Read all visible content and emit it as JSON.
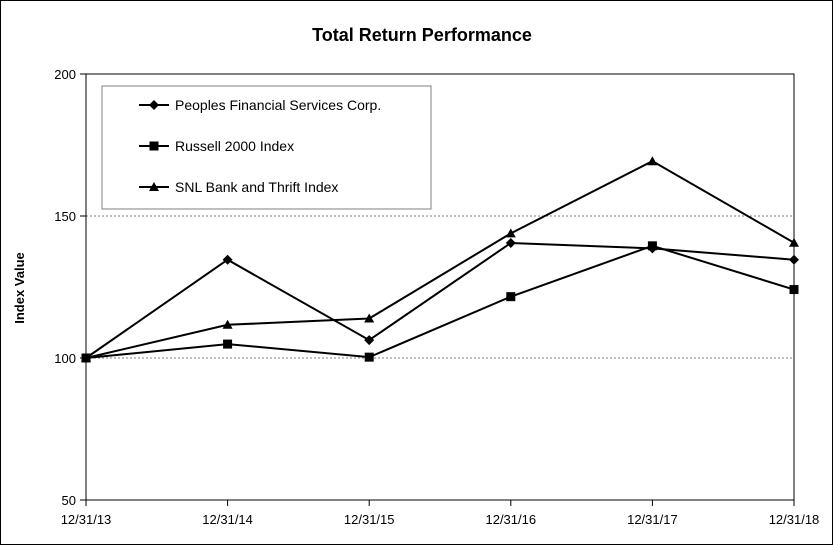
{
  "chart_data": {
    "type": "line",
    "title": "Total Return Performance",
    "xlabel": "",
    "ylabel": "Index Value",
    "categories": [
      "12/31/13",
      "12/31/14",
      "12/31/15",
      "12/31/16",
      "12/31/17",
      "12/31/18"
    ],
    "ylim": [
      50,
      200
    ],
    "yticks": [
      50,
      100,
      150,
      200
    ],
    "grid": "horizontal dashed",
    "legend": "top-left",
    "series": [
      {
        "name": "Peoples Financial Services Corp.",
        "marker": "diamond",
        "values": [
          100.0,
          134.6,
          106.3,
          140.5,
          138.6,
          134.6
        ]
      },
      {
        "name": "Russell 2000 Index",
        "marker": "square",
        "values": [
          100.0,
          104.9,
          100.3,
          121.6,
          139.5,
          124.1
        ]
      },
      {
        "name": "SNL Bank and Thrift Index",
        "marker": "triangle",
        "values": [
          100.0,
          111.7,
          113.9,
          143.9,
          169.3,
          140.6
        ]
      }
    ],
    "colors": {
      "line": "#000000",
      "grid": "#808080",
      "background": "#ffffff"
    }
  }
}
